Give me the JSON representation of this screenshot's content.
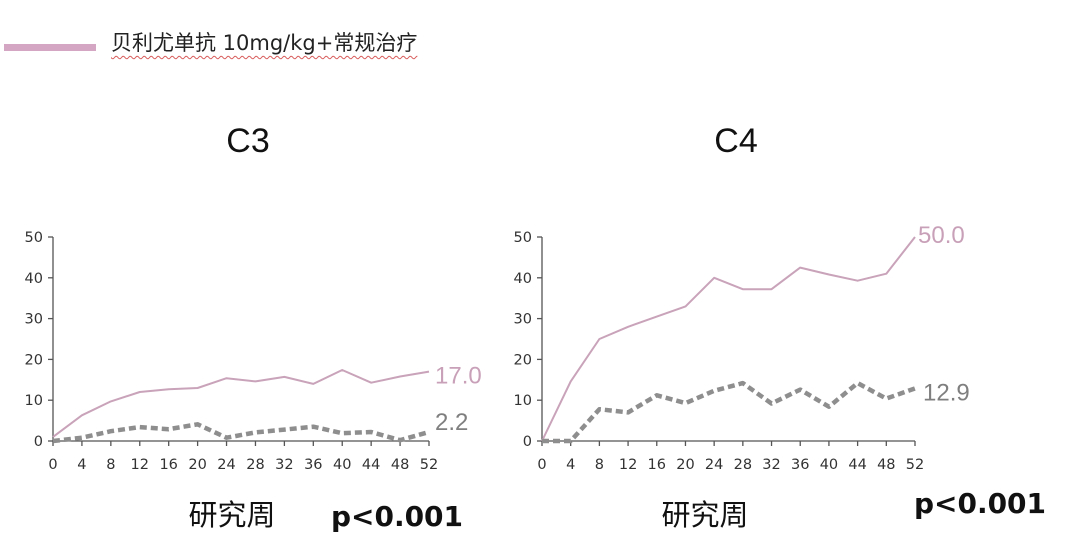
{
  "legend": {
    "label": "贝利尤单抗  10mg/kg+常规治疗",
    "color": "#d4a6c3"
  },
  "chart_data": [
    {
      "type": "line",
      "title": "C3",
      "xlabel": "研究周",
      "p_value": "p<0.001",
      "x": [
        0,
        4,
        8,
        12,
        16,
        20,
        24,
        28,
        32,
        36,
        40,
        44,
        48,
        52
      ],
      "xticks": [
        "0",
        "4",
        "8",
        "12",
        "16",
        "20",
        "24",
        "28",
        "32",
        "36",
        "40",
        "44",
        "48",
        "52"
      ],
      "yticks": [
        "0",
        "10",
        "20",
        "30",
        "40",
        "50"
      ],
      "ylim": [
        0,
        50
      ],
      "xlim": [
        0,
        52
      ],
      "series": [
        {
          "style": "solid",
          "color": "#c9a3b9",
          "values": [
            1,
            6.3,
            9.7,
            12,
            12.7,
            13,
            15.4,
            14.6,
            15.7,
            14,
            17.4,
            14.3,
            15.8,
            17.0
          ],
          "end_label": "17.0",
          "end_color": "#c8a0b8"
        },
        {
          "style": "dashed",
          "color": "#8e8e8e",
          "values": [
            0,
            0.8,
            2.4,
            3.4,
            2.9,
            4.1,
            0.8,
            2.1,
            2.8,
            3.5,
            1.9,
            2.2,
            0.2,
            2.2
          ],
          "end_label": "2.2",
          "end_color": "#7f7f7f"
        }
      ]
    },
    {
      "type": "line",
      "title": "C4",
      "xlabel": "研究周",
      "p_value": "p<0.001",
      "x": [
        0,
        4,
        8,
        12,
        16,
        20,
        24,
        28,
        32,
        36,
        40,
        44,
        48,
        52
      ],
      "xticks": [
        "0",
        "4",
        "8",
        "12",
        "16",
        "20",
        "24",
        "28",
        "32",
        "36",
        "40",
        "44",
        "48",
        "52"
      ],
      "yticks": [
        "0",
        "10",
        "20",
        "30",
        "40",
        "50"
      ],
      "ylim": [
        0,
        50
      ],
      "xlim": [
        0,
        52
      ],
      "series": [
        {
          "style": "solid",
          "color": "#c9a3b9",
          "values": [
            0,
            14.6,
            25,
            28,
            30.5,
            33,
            40,
            37.2,
            37.2,
            42.5,
            40.8,
            39.3,
            41,
            50.0
          ],
          "end_label": "50.0",
          "end_color": "#c8a0b8"
        },
        {
          "style": "dashed",
          "color": "#8e8e8e",
          "values": [
            0,
            0,
            7.8,
            7,
            11.2,
            9.3,
            12.3,
            14.2,
            9.2,
            12.6,
            8.4,
            14.2,
            10.4,
            12.9
          ],
          "end_label": "12.9",
          "end_color": "#7f7f7f"
        }
      ]
    }
  ]
}
